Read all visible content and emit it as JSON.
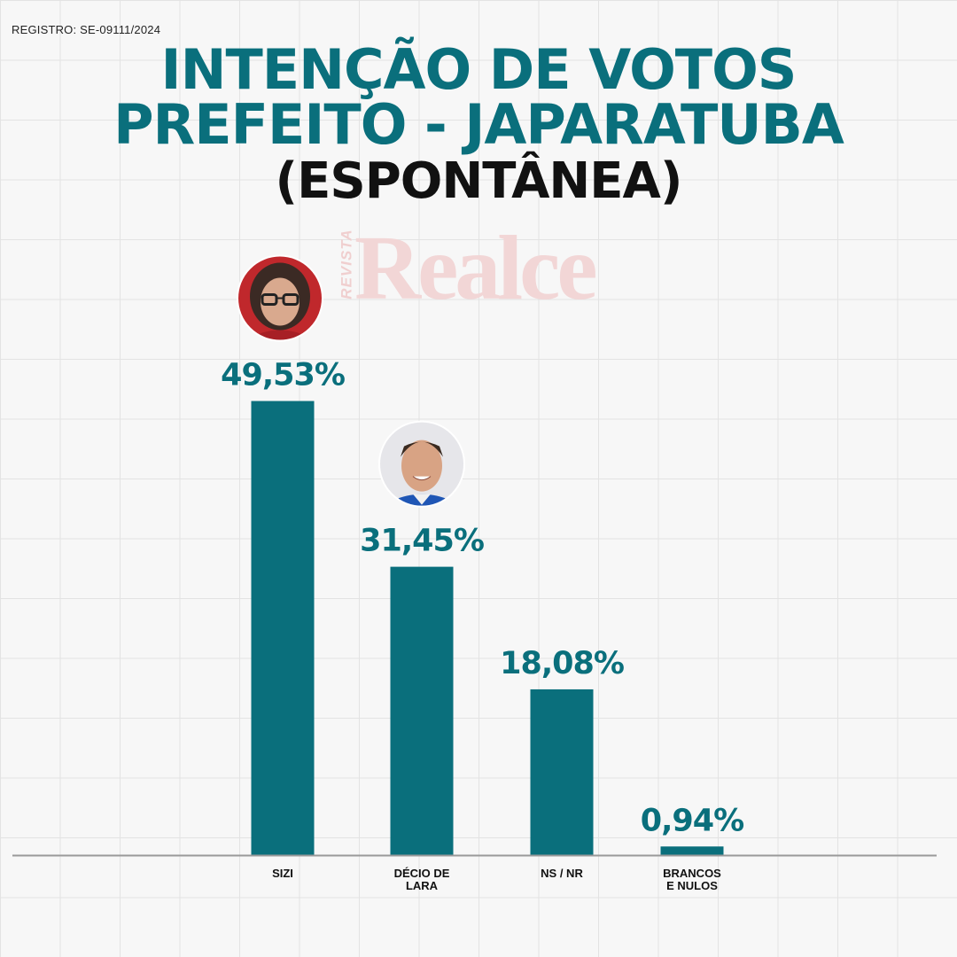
{
  "registro": "REGISTRO: SE-09111/2024",
  "title_line1": "INTENÇÃO DE VOTOS",
  "title_line2": "PREFEITO - JAPARATUBA",
  "subtitle": "(ESPONTÂNEA)",
  "watermark": {
    "side": "REVISTA",
    "main": "Realce"
  },
  "colors": {
    "bar": "#0a6f7c",
    "title": "#0a6f7c",
    "baseline": "#9a9a9a"
  },
  "chart_data": {
    "type": "bar",
    "categories": [
      [
        "SIZI"
      ],
      [
        "DÉCIO DE",
        "LARA"
      ],
      [
        "NS / NR"
      ],
      [
        "BRANCOS",
        "E NULOS"
      ]
    ],
    "values": [
      49.53,
      31.45,
      18.08,
      0.94
    ],
    "value_labels": [
      "49,53%",
      "31,45%",
      "18,08%",
      "0,94%"
    ],
    "ylim": [
      0,
      52
    ],
    "grid": true,
    "photos": [
      {
        "bar_index": 0,
        "icon": "candidate-photo-woman-glasses",
        "bg": "#c0282c"
      },
      {
        "bar_index": 1,
        "icon": "candidate-photo-man-blue-shirt",
        "bg": "#e6e6ea"
      }
    ]
  }
}
